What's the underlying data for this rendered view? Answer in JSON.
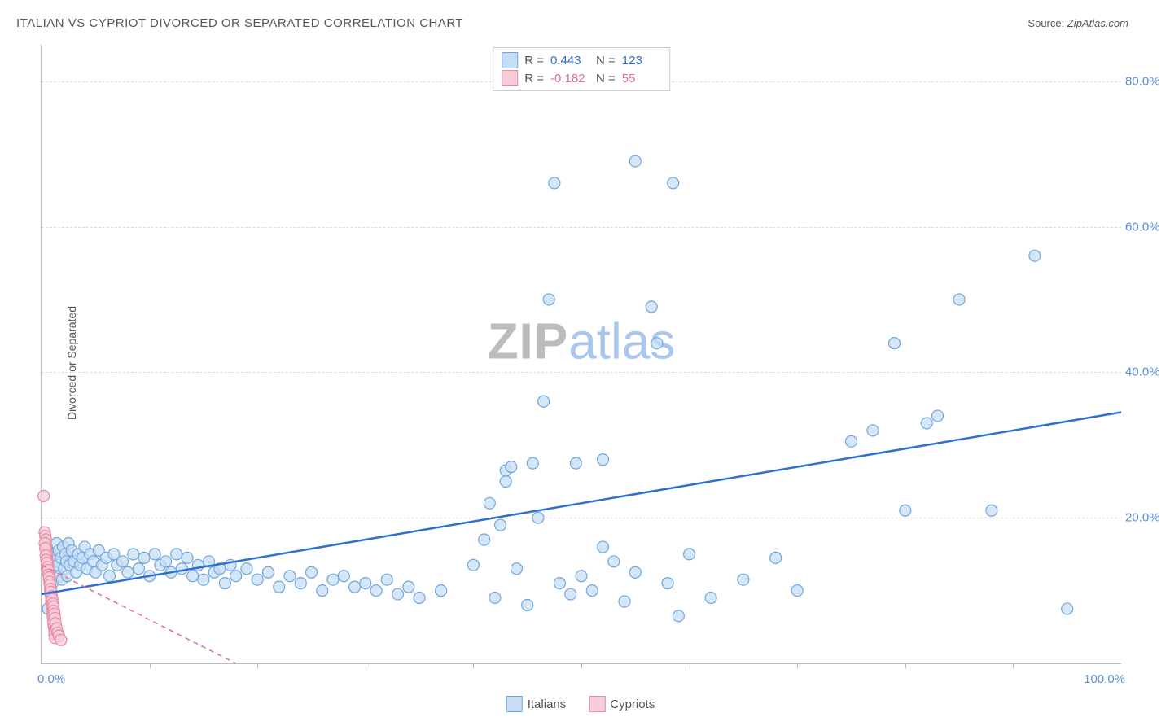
{
  "title": "ITALIAN VS CYPRIOT DIVORCED OR SEPARATED CORRELATION CHART",
  "source_label": "Source:",
  "source_value": "ZipAtlas.com",
  "y_axis_label": "Divorced or Separated",
  "watermark_a": "ZIP",
  "watermark_b": "atlas",
  "chart": {
    "type": "scatter",
    "xlim": [
      0,
      100
    ],
    "ylim": [
      0,
      85
    ],
    "x_tick_start_label": "0.0%",
    "x_tick_end_label": "100.0%",
    "x_minor_ticks": [
      10,
      20,
      30,
      40,
      50,
      60,
      70,
      80,
      90
    ],
    "y_ticks": [
      {
        "v": 20,
        "label": "20.0%"
      },
      {
        "v": 40,
        "label": "40.0%"
      },
      {
        "v": 60,
        "label": "60.0%"
      },
      {
        "v": 80,
        "label": "80.0%"
      }
    ],
    "grid_color": "#dddddd",
    "axis_color": "#bbbbbb",
    "tick_label_color": "#5a8fd6",
    "background_color": "#ffffff",
    "marker_radius": 7,
    "marker_stroke_width": 1.2,
    "series": [
      {
        "name": "Italians",
        "fill": "#c7ddf3",
        "stroke": "#6fa6e0",
        "line_color": "#2f6fd0",
        "line_width": 2.5,
        "regression": {
          "x1": 0,
          "y1": 9.5,
          "x2": 100,
          "y2": 34.5
        },
        "R": 0.443,
        "N": 123,
        "points": [
          [
            0.5,
            16
          ],
          [
            0.6,
            7.5
          ],
          [
            0.8,
            13
          ],
          [
            0.9,
            15
          ],
          [
            1.0,
            11
          ],
          [
            1.2,
            14
          ],
          [
            1.3,
            12.5
          ],
          [
            1.4,
            16.5
          ],
          [
            1.5,
            13.5
          ],
          [
            1.6,
            15.5
          ],
          [
            1.7,
            12
          ],
          [
            1.8,
            14.5
          ],
          [
            1.9,
            11.5
          ],
          [
            2.0,
            16
          ],
          [
            2.1,
            13
          ],
          [
            2.2,
            15
          ],
          [
            2.3,
            14
          ],
          [
            2.4,
            12
          ],
          [
            2.5,
            16.5
          ],
          [
            2.6,
            13.5
          ],
          [
            2.8,
            15.5
          ],
          [
            3.0,
            14
          ],
          [
            3.2,
            12.5
          ],
          [
            3.4,
            15
          ],
          [
            3.6,
            13.5
          ],
          [
            3.8,
            14.5
          ],
          [
            4.0,
            16
          ],
          [
            4.2,
            13
          ],
          [
            4.5,
            15
          ],
          [
            4.8,
            14
          ],
          [
            5.0,
            12.5
          ],
          [
            5.3,
            15.5
          ],
          [
            5.6,
            13.5
          ],
          [
            6.0,
            14.5
          ],
          [
            6.3,
            12
          ],
          [
            6.7,
            15
          ],
          [
            7.0,
            13.5
          ],
          [
            7.5,
            14
          ],
          [
            8.0,
            12.5
          ],
          [
            8.5,
            15
          ],
          [
            9.0,
            13
          ],
          [
            9.5,
            14.5
          ],
          [
            10.0,
            12
          ],
          [
            10.5,
            15
          ],
          [
            11.0,
            13.5
          ],
          [
            11.5,
            14
          ],
          [
            12.0,
            12.5
          ],
          [
            12.5,
            15
          ],
          [
            13.0,
            13
          ],
          [
            13.5,
            14.5
          ],
          [
            14.0,
            12
          ],
          [
            14.5,
            13.5
          ],
          [
            15.0,
            11.5
          ],
          [
            15.5,
            14
          ],
          [
            16.0,
            12.5
          ],
          [
            16.5,
            13
          ],
          [
            17.0,
            11
          ],
          [
            17.5,
            13.5
          ],
          [
            18.0,
            12
          ],
          [
            19.0,
            13
          ],
          [
            20.0,
            11.5
          ],
          [
            21.0,
            12.5
          ],
          [
            22.0,
            10.5
          ],
          [
            23.0,
            12
          ],
          [
            24.0,
            11
          ],
          [
            25.0,
            12.5
          ],
          [
            26.0,
            10
          ],
          [
            27.0,
            11.5
          ],
          [
            28.0,
            12
          ],
          [
            29.0,
            10.5
          ],
          [
            30.0,
            11
          ],
          [
            31.0,
            10
          ],
          [
            32.0,
            11.5
          ],
          [
            33.0,
            9.5
          ],
          [
            34.0,
            10.5
          ],
          [
            35.0,
            9
          ],
          [
            37.0,
            10
          ],
          [
            40.0,
            13.5
          ],
          [
            41.0,
            17
          ],
          [
            41.5,
            22
          ],
          [
            42.0,
            9
          ],
          [
            42.5,
            19
          ],
          [
            43.0,
            25
          ],
          [
            43.0,
            26.5
          ],
          [
            43.5,
            27
          ],
          [
            44.0,
            13
          ],
          [
            45.0,
            8
          ],
          [
            45.5,
            27.5
          ],
          [
            46.0,
            20
          ],
          [
            46.5,
            36
          ],
          [
            47.0,
            50
          ],
          [
            47.5,
            66
          ],
          [
            48.0,
            11
          ],
          [
            49.0,
            9.5
          ],
          [
            49.5,
            27.5
          ],
          [
            50.0,
            12
          ],
          [
            51.0,
            10
          ],
          [
            52.0,
            16
          ],
          [
            52.0,
            28
          ],
          [
            53.0,
            14
          ],
          [
            54.0,
            8.5
          ],
          [
            55.0,
            12.5
          ],
          [
            55.0,
            69
          ],
          [
            56.5,
            49
          ],
          [
            57.0,
            44
          ],
          [
            58.0,
            11
          ],
          [
            58.5,
            66
          ],
          [
            59.0,
            6.5
          ],
          [
            60.0,
            15
          ],
          [
            62.0,
            9
          ],
          [
            65.0,
            11.5
          ],
          [
            68.0,
            14.5
          ],
          [
            70.0,
            10
          ],
          [
            75.0,
            30.5
          ],
          [
            77.0,
            32
          ],
          [
            79.0,
            44
          ],
          [
            80.0,
            21
          ],
          [
            82.0,
            33
          ],
          [
            83.0,
            34
          ],
          [
            85.0,
            50
          ],
          [
            88.0,
            21
          ],
          [
            92.0,
            56
          ],
          [
            95.0,
            7.5
          ]
        ]
      },
      {
        "name": "Cypriots",
        "fill": "#f6cdd8",
        "stroke": "#e98aa4",
        "line_color": "#e36f90",
        "line_width": 1.5,
        "line_dash": "6,5",
        "regression": {
          "x1": 0,
          "y1": 13.5,
          "x2": 18,
          "y2": 0
        },
        "R": -0.182,
        "N": 55,
        "points": [
          [
            0.2,
            23
          ],
          [
            0.3,
            18
          ],
          [
            0.35,
            17.5
          ],
          [
            0.4,
            17
          ],
          [
            0.4,
            16
          ],
          [
            0.45,
            15.5
          ],
          [
            0.5,
            15
          ],
          [
            0.5,
            14.5
          ],
          [
            0.55,
            14
          ],
          [
            0.6,
            13.5
          ],
          [
            0.6,
            13
          ],
          [
            0.65,
            12.5
          ],
          [
            0.7,
            12
          ],
          [
            0.7,
            11.5
          ],
          [
            0.75,
            11
          ],
          [
            0.8,
            10.5
          ],
          [
            0.8,
            10
          ],
          [
            0.85,
            9.5
          ],
          [
            0.9,
            9
          ],
          [
            0.9,
            8.5
          ],
          [
            0.95,
            8
          ],
          [
            1.0,
            7.5
          ],
          [
            1.0,
            7
          ],
          [
            1.05,
            6.5
          ],
          [
            1.1,
            6
          ],
          [
            1.1,
            5.5
          ],
          [
            1.15,
            5
          ],
          [
            1.2,
            4.5
          ],
          [
            1.2,
            4
          ],
          [
            1.25,
            3.5
          ],
          [
            0.3,
            16.5
          ],
          [
            0.35,
            15.8
          ],
          [
            0.4,
            14.8
          ],
          [
            0.45,
            14.2
          ],
          [
            0.5,
            13.8
          ],
          [
            0.55,
            13.2
          ],
          [
            0.6,
            12.8
          ],
          [
            0.65,
            12.2
          ],
          [
            0.7,
            11.8
          ],
          [
            0.75,
            11.2
          ],
          [
            0.8,
            10.8
          ],
          [
            0.85,
            10.2
          ],
          [
            0.9,
            9.8
          ],
          [
            0.95,
            9.2
          ],
          [
            1.0,
            8.8
          ],
          [
            1.05,
            8.2
          ],
          [
            1.1,
            7.8
          ],
          [
            1.15,
            7.2
          ],
          [
            1.2,
            6.8
          ],
          [
            1.25,
            6.2
          ],
          [
            1.3,
            5.5
          ],
          [
            1.4,
            4.8
          ],
          [
            1.5,
            4.2
          ],
          [
            1.6,
            3.8
          ],
          [
            1.8,
            3.2
          ]
        ]
      }
    ]
  },
  "stats": {
    "r_label": "R =",
    "n_label": "N =",
    "rows": [
      {
        "fill": "#c7ddf3",
        "stroke": "#6fa6e0",
        "r": "0.443",
        "n": "123",
        "color": "#2f6fd0"
      },
      {
        "fill": "#f6cdd8",
        "stroke": "#e98aa4",
        "r": "-0.182",
        "n": "55",
        "color": "#e36f90"
      }
    ]
  },
  "legend": {
    "items": [
      {
        "label": "Italians",
        "fill": "#c7ddf3",
        "stroke": "#6fa6e0"
      },
      {
        "label": "Cypriots",
        "fill": "#f6cdd8",
        "stroke": "#e98aa4"
      }
    ]
  }
}
